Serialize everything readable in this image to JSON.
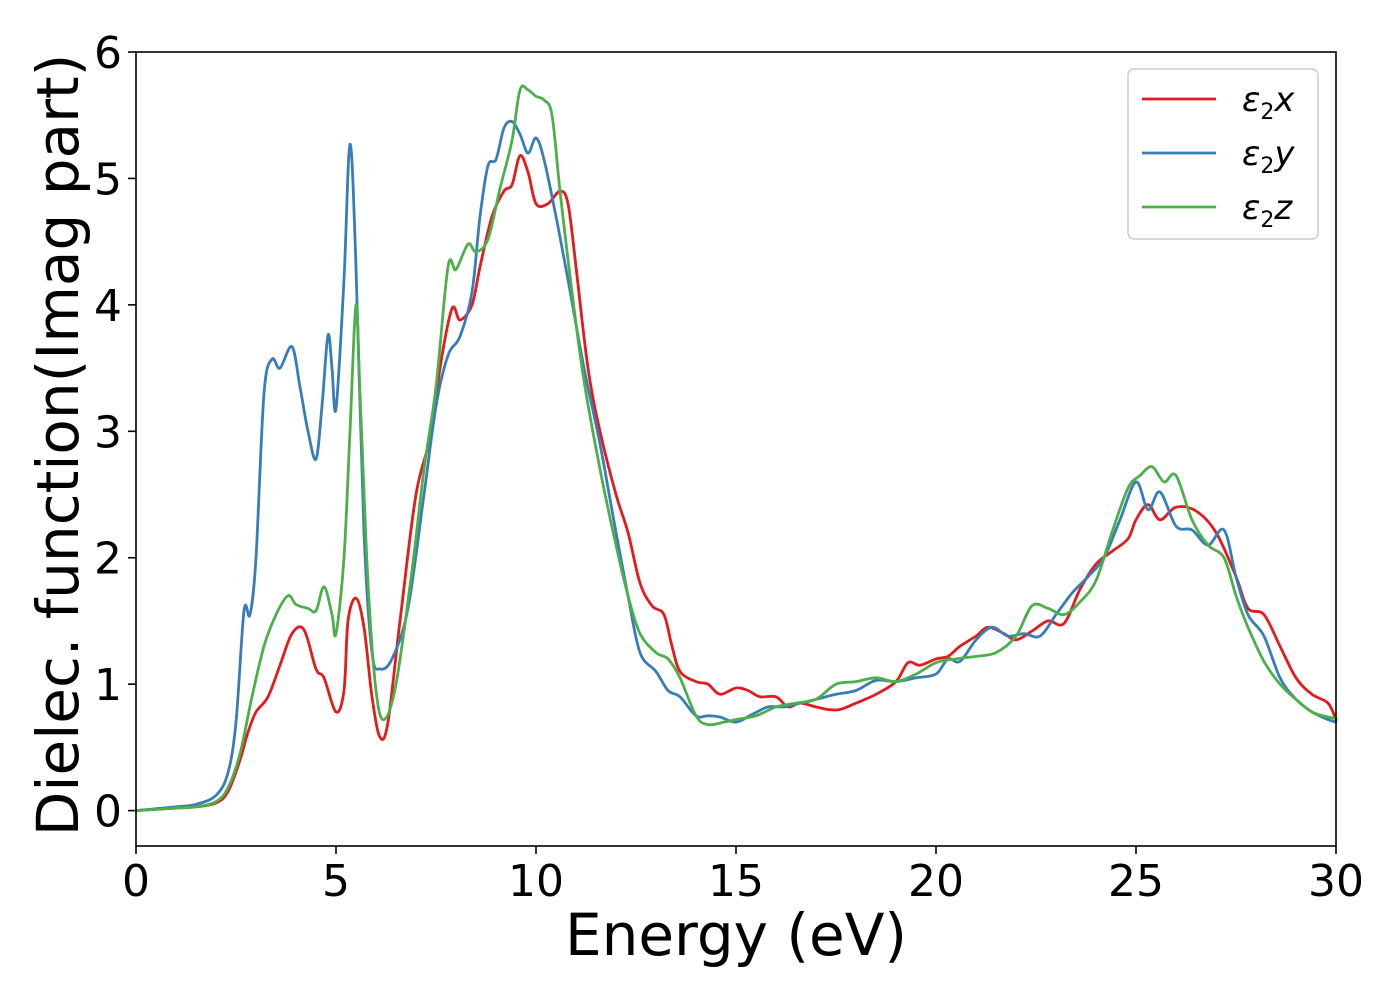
{
  "chart_data": {
    "type": "line",
    "title": "",
    "xlabel": "Energy (eV)",
    "ylabel": "Dielec. function(Imag part)",
    "xlim": [
      0,
      30
    ],
    "ylim": [
      -0.28,
      6.0
    ],
    "xticks": [
      0,
      5,
      10,
      15,
      20,
      25,
      30
    ],
    "yticks": [
      0,
      1,
      2,
      3,
      4,
      5,
      6
    ],
    "grid": false,
    "legend_position": "top-right",
    "series": [
      {
        "name": "ε2x",
        "label_main": "ε",
        "label_sub": "2",
        "label_tail": "x",
        "color": "#e41a1c",
        "points": [
          [
            0,
            0
          ],
          [
            1,
            0.02
          ],
          [
            1.5,
            0.03
          ],
          [
            2,
            0.06
          ],
          [
            2.3,
            0.15
          ],
          [
            2.6,
            0.4
          ],
          [
            2.8,
            0.62
          ],
          [
            3.0,
            0.78
          ],
          [
            3.3,
            0.9
          ],
          [
            3.6,
            1.15
          ],
          [
            3.9,
            1.4
          ],
          [
            4.2,
            1.43
          ],
          [
            4.5,
            1.12
          ],
          [
            4.7,
            1.05
          ],
          [
            5.0,
            0.78
          ],
          [
            5.2,
            0.95
          ],
          [
            5.3,
            1.5
          ],
          [
            5.5,
            1.68
          ],
          [
            5.7,
            1.45
          ],
          [
            5.9,
            0.9
          ],
          [
            6.1,
            0.58
          ],
          [
            6.3,
            0.7
          ],
          [
            6.6,
            1.5
          ],
          [
            7.0,
            2.5
          ],
          [
            7.4,
            3.0
          ],
          [
            7.6,
            3.5
          ],
          [
            7.9,
            3.97
          ],
          [
            8.1,
            3.88
          ],
          [
            8.4,
            4.0
          ],
          [
            8.6,
            4.3
          ],
          [
            8.9,
            4.7
          ],
          [
            9.2,
            4.9
          ],
          [
            9.4,
            4.95
          ],
          [
            9.6,
            5.18
          ],
          [
            9.8,
            5.05
          ],
          [
            10.0,
            4.8
          ],
          [
            10.3,
            4.8
          ],
          [
            10.6,
            4.9
          ],
          [
            10.8,
            4.8
          ],
          [
            11.0,
            4.3
          ],
          [
            11.3,
            3.5
          ],
          [
            11.6,
            3.0
          ],
          [
            12.0,
            2.5
          ],
          [
            12.3,
            2.2
          ],
          [
            12.6,
            1.8
          ],
          [
            12.9,
            1.62
          ],
          [
            13.2,
            1.55
          ],
          [
            13.4,
            1.3
          ],
          [
            13.6,
            1.1
          ],
          [
            14.0,
            1.02
          ],
          [
            14.3,
            1.0
          ],
          [
            14.6,
            0.92
          ],
          [
            15.0,
            0.97
          ],
          [
            15.3,
            0.95
          ],
          [
            15.6,
            0.9
          ],
          [
            16.0,
            0.9
          ],
          [
            16.3,
            0.82
          ],
          [
            16.6,
            0.85
          ],
          [
            17.0,
            0.82
          ],
          [
            17.3,
            0.8
          ],
          [
            17.6,
            0.8
          ],
          [
            18.0,
            0.85
          ],
          [
            18.5,
            0.92
          ],
          [
            19.0,
            1.02
          ],
          [
            19.3,
            1.17
          ],
          [
            19.6,
            1.15
          ],
          [
            20.0,
            1.2
          ],
          [
            20.3,
            1.22
          ],
          [
            20.6,
            1.3
          ],
          [
            21.0,
            1.38
          ],
          [
            21.3,
            1.45
          ],
          [
            21.7,
            1.4
          ],
          [
            22.0,
            1.35
          ],
          [
            22.4,
            1.42
          ],
          [
            22.8,
            1.5
          ],
          [
            23.2,
            1.48
          ],
          [
            23.6,
            1.75
          ],
          [
            24.0,
            1.95
          ],
          [
            24.4,
            2.05
          ],
          [
            24.8,
            2.15
          ],
          [
            25.0,
            2.3
          ],
          [
            25.3,
            2.42
          ],
          [
            25.6,
            2.3
          ],
          [
            26.0,
            2.4
          ],
          [
            26.5,
            2.37
          ],
          [
            27.0,
            2.2
          ],
          [
            27.5,
            1.85
          ],
          [
            27.8,
            1.6
          ],
          [
            28.2,
            1.55
          ],
          [
            28.6,
            1.3
          ],
          [
            29.0,
            1.05
          ],
          [
            29.4,
            0.92
          ],
          [
            29.8,
            0.85
          ],
          [
            30.0,
            0.72
          ]
        ]
      },
      {
        "name": "ε2y",
        "label_main": "ε",
        "label_sub": "2",
        "label_tail": "y",
        "color": "#377eb8",
        "points": [
          [
            0,
            0
          ],
          [
            1,
            0.03
          ],
          [
            1.5,
            0.05
          ],
          [
            2,
            0.12
          ],
          [
            2.3,
            0.3
          ],
          [
            2.5,
            0.7
          ],
          [
            2.7,
            1.58
          ],
          [
            2.85,
            1.55
          ],
          [
            3.0,
            2.0
          ],
          [
            3.2,
            3.3
          ],
          [
            3.4,
            3.57
          ],
          [
            3.6,
            3.5
          ],
          [
            3.9,
            3.67
          ],
          [
            4.1,
            3.35
          ],
          [
            4.3,
            3.0
          ],
          [
            4.5,
            2.78
          ],
          [
            4.65,
            3.2
          ],
          [
            4.8,
            3.76
          ],
          [
            4.9,
            3.5
          ],
          [
            5.0,
            3.18
          ],
          [
            5.2,
            4.2
          ],
          [
            5.35,
            5.27
          ],
          [
            5.5,
            4.3
          ],
          [
            5.7,
            2.2
          ],
          [
            5.9,
            1.25
          ],
          [
            6.1,
            1.12
          ],
          [
            6.4,
            1.2
          ],
          [
            6.8,
            1.6
          ],
          [
            7.2,
            2.5
          ],
          [
            7.5,
            3.2
          ],
          [
            7.8,
            3.6
          ],
          [
            8.1,
            3.75
          ],
          [
            8.4,
            4.1
          ],
          [
            8.6,
            4.7
          ],
          [
            8.8,
            5.1
          ],
          [
            9.0,
            5.15
          ],
          [
            9.2,
            5.4
          ],
          [
            9.4,
            5.45
          ],
          [
            9.6,
            5.35
          ],
          [
            9.8,
            5.2
          ],
          [
            10.0,
            5.32
          ],
          [
            10.2,
            5.15
          ],
          [
            10.5,
            4.7
          ],
          [
            10.8,
            4.2
          ],
          [
            11.2,
            3.5
          ],
          [
            11.6,
            2.9
          ],
          [
            12.0,
            2.2
          ],
          [
            12.3,
            1.7
          ],
          [
            12.6,
            1.25
          ],
          [
            13.0,
            1.1
          ],
          [
            13.3,
            0.95
          ],
          [
            13.6,
            0.9
          ],
          [
            14.0,
            0.75
          ],
          [
            14.3,
            0.75
          ],
          [
            14.6,
            0.74
          ],
          [
            15.0,
            0.7
          ],
          [
            15.4,
            0.76
          ],
          [
            15.8,
            0.82
          ],
          [
            16.2,
            0.82
          ],
          [
            16.6,
            0.85
          ],
          [
            17.0,
            0.88
          ],
          [
            17.5,
            0.92
          ],
          [
            18.0,
            0.95
          ],
          [
            18.5,
            1.03
          ],
          [
            19.0,
            1.02
          ],
          [
            19.5,
            1.05
          ],
          [
            20.0,
            1.08
          ],
          [
            20.3,
            1.2
          ],
          [
            20.6,
            1.18
          ],
          [
            21.0,
            1.35
          ],
          [
            21.4,
            1.45
          ],
          [
            21.8,
            1.38
          ],
          [
            22.2,
            1.4
          ],
          [
            22.6,
            1.38
          ],
          [
            23.0,
            1.55
          ],
          [
            23.4,
            1.72
          ],
          [
            23.8,
            1.85
          ],
          [
            24.2,
            2.0
          ],
          [
            24.6,
            2.3
          ],
          [
            25.0,
            2.6
          ],
          [
            25.3,
            2.38
          ],
          [
            25.6,
            2.52
          ],
          [
            26.0,
            2.25
          ],
          [
            26.4,
            2.22
          ],
          [
            26.8,
            2.1
          ],
          [
            27.2,
            2.22
          ],
          [
            27.5,
            1.85
          ],
          [
            27.8,
            1.55
          ],
          [
            28.2,
            1.38
          ],
          [
            28.6,
            1.05
          ],
          [
            29.0,
            0.88
          ],
          [
            29.4,
            0.78
          ],
          [
            29.8,
            0.72
          ],
          [
            30.0,
            0.7
          ]
        ]
      },
      {
        "name": "ε2z",
        "label_main": "ε",
        "label_sub": "2",
        "label_tail": "z",
        "color": "#4daf4a",
        "points": [
          [
            0,
            0
          ],
          [
            1,
            0.02
          ],
          [
            1.5,
            0.03
          ],
          [
            2,
            0.07
          ],
          [
            2.3,
            0.18
          ],
          [
            2.6,
            0.45
          ],
          [
            2.9,
            0.9
          ],
          [
            3.2,
            1.3
          ],
          [
            3.5,
            1.55
          ],
          [
            3.8,
            1.7
          ],
          [
            4.0,
            1.63
          ],
          [
            4.3,
            1.6
          ],
          [
            4.5,
            1.58
          ],
          [
            4.7,
            1.77
          ],
          [
            4.9,
            1.55
          ],
          [
            5.0,
            1.4
          ],
          [
            5.2,
            2.0
          ],
          [
            5.35,
            3.0
          ],
          [
            5.5,
            4.0
          ],
          [
            5.6,
            3.3
          ],
          [
            5.8,
            1.8
          ],
          [
            6.0,
            0.95
          ],
          [
            6.2,
            0.72
          ],
          [
            6.5,
            1.0
          ],
          [
            6.9,
            1.9
          ],
          [
            7.2,
            2.7
          ],
          [
            7.5,
            3.35
          ],
          [
            7.8,
            4.3
          ],
          [
            8.0,
            4.28
          ],
          [
            8.3,
            4.48
          ],
          [
            8.5,
            4.42
          ],
          [
            8.8,
            4.52
          ],
          [
            9.1,
            4.92
          ],
          [
            9.4,
            5.3
          ],
          [
            9.6,
            5.7
          ],
          [
            9.8,
            5.7
          ],
          [
            10.0,
            5.65
          ],
          [
            10.2,
            5.62
          ],
          [
            10.4,
            5.5
          ],
          [
            10.6,
            4.9
          ],
          [
            10.9,
            4.1
          ],
          [
            11.2,
            3.4
          ],
          [
            11.6,
            2.7
          ],
          [
            12.0,
            2.1
          ],
          [
            12.3,
            1.7
          ],
          [
            12.6,
            1.4
          ],
          [
            13.0,
            1.25
          ],
          [
            13.3,
            1.2
          ],
          [
            13.6,
            1.05
          ],
          [
            14.0,
            0.75
          ],
          [
            14.3,
            0.68
          ],
          [
            14.7,
            0.7
          ],
          [
            15.0,
            0.72
          ],
          [
            15.5,
            0.75
          ],
          [
            16.0,
            0.82
          ],
          [
            16.5,
            0.85
          ],
          [
            17.0,
            0.88
          ],
          [
            17.5,
            1.0
          ],
          [
            18.0,
            1.02
          ],
          [
            18.5,
            1.05
          ],
          [
            19.0,
            1.02
          ],
          [
            19.5,
            1.08
          ],
          [
            20.0,
            1.17
          ],
          [
            20.5,
            1.2
          ],
          [
            21.0,
            1.22
          ],
          [
            21.5,
            1.25
          ],
          [
            22.0,
            1.38
          ],
          [
            22.4,
            1.62
          ],
          [
            22.8,
            1.6
          ],
          [
            23.2,
            1.55
          ],
          [
            23.6,
            1.65
          ],
          [
            24.0,
            1.82
          ],
          [
            24.4,
            2.2
          ],
          [
            24.8,
            2.55
          ],
          [
            25.1,
            2.65
          ],
          [
            25.4,
            2.72
          ],
          [
            25.7,
            2.6
          ],
          [
            26.0,
            2.65
          ],
          [
            26.4,
            2.3
          ],
          [
            26.8,
            2.1
          ],
          [
            27.2,
            2.0
          ],
          [
            27.5,
            1.7
          ],
          [
            27.8,
            1.45
          ],
          [
            28.2,
            1.18
          ],
          [
            28.6,
            1.0
          ],
          [
            29.0,
            0.88
          ],
          [
            29.4,
            0.78
          ],
          [
            29.8,
            0.74
          ],
          [
            30.0,
            0.73
          ]
        ]
      }
    ]
  }
}
